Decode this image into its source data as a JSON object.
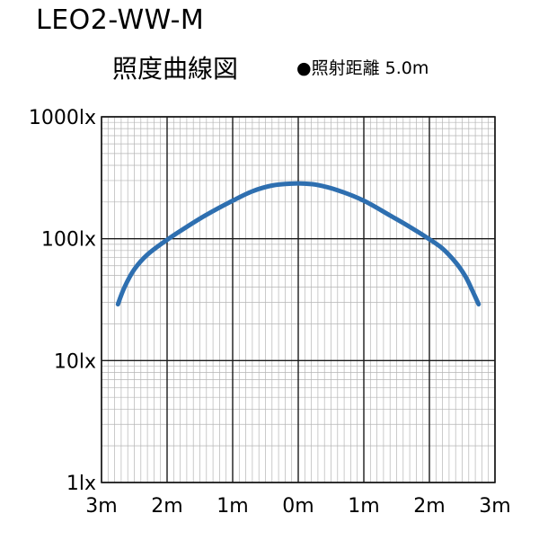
{
  "header": {
    "model": "LEO2-WW-M",
    "subtitle": "照度曲線図",
    "note": "●照射距離 5.0m"
  },
  "chart_data": {
    "type": "line",
    "title": "照度曲線図",
    "xlabel": "",
    "ylabel": "",
    "y_scale": "log",
    "ylim": [
      1,
      1000
    ],
    "xlim": [
      -3,
      3
    ],
    "grid": true,
    "x_ticks": [
      {
        "value": -3,
        "label": "3m"
      },
      {
        "value": -2,
        "label": "2m"
      },
      {
        "value": -1,
        "label": "1m"
      },
      {
        "value": 0,
        "label": "0m"
      },
      {
        "value": 1,
        "label": "1m"
      },
      {
        "value": 2,
        "label": "2m"
      },
      {
        "value": 3,
        "label": "3m"
      }
    ],
    "y_ticks": [
      {
        "value": 1000,
        "label": "1000lx"
      },
      {
        "value": 100,
        "label": "100lx"
      },
      {
        "value": 10,
        "label": "10lx"
      },
      {
        "value": 1,
        "label": "1lx"
      }
    ],
    "series": [
      {
        "color": "#2e6fb0",
        "x": [
          -2.75,
          -2.65,
          -2.5,
          -2.3,
          -2.0,
          -1.7,
          -1.4,
          -1.0,
          -0.7,
          -0.4,
          -0.1,
          0.1,
          0.3,
          0.6,
          1.0,
          1.4,
          1.7,
          2.0,
          2.2,
          2.4,
          2.55,
          2.65,
          2.75
        ],
        "y": [
          29,
          40,
          56,
          74,
          98,
          125,
          157,
          205,
          245,
          273,
          283,
          283,
          276,
          250,
          205,
          155,
          125,
          99,
          83,
          64,
          49,
          38,
          29
        ]
      }
    ]
  }
}
